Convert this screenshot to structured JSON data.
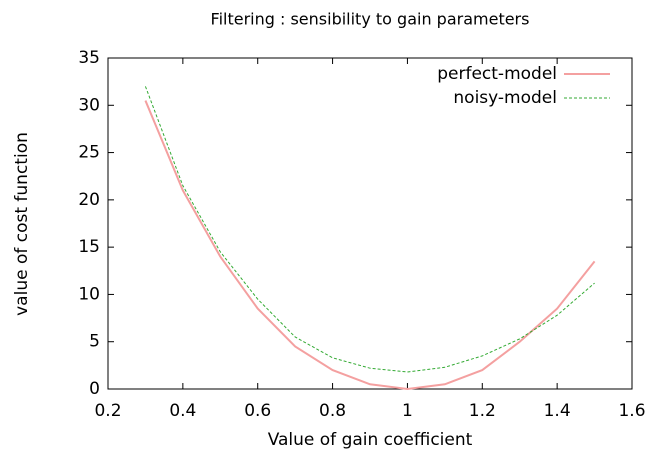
{
  "chart_data": {
    "type": "line",
    "title": "Filtering : sensibility to gain parameters",
    "x_label": "Value of gain coefficient",
    "y_label": "value of cost function",
    "x": [
      0.3,
      0.4,
      0.5,
      0.6,
      0.7,
      0.8,
      0.9,
      1.0,
      1.1,
      1.2,
      1.3,
      1.4,
      1.5
    ],
    "series": [
      {
        "name": "perfect-model",
        "color": "#f4a0a0",
        "dash": false,
        "values": [
          30.5,
          21,
          14,
          8.5,
          4.5,
          2,
          0.5,
          0,
          0.5,
          2,
          5,
          8.5,
          13.5
        ]
      },
      {
        "name": "noisy-model",
        "color": "#33aa33",
        "dash": true,
        "values": [
          32,
          21.5,
          14.5,
          9.5,
          5.5,
          3.3,
          2.2,
          1.8,
          2.3,
          3.5,
          5.3,
          7.8,
          11.2
        ]
      }
    ],
    "xlim": [
      0.2,
      1.6
    ],
    "xticks": [
      0.2,
      0.4,
      0.6,
      0.8,
      1,
      1.2,
      1.4,
      1.6
    ],
    "ylim": [
      0,
      35
    ],
    "yticks": [
      0,
      5,
      10,
      15,
      20,
      25,
      30,
      35
    ],
    "legend": "top-right",
    "grid": false
  }
}
